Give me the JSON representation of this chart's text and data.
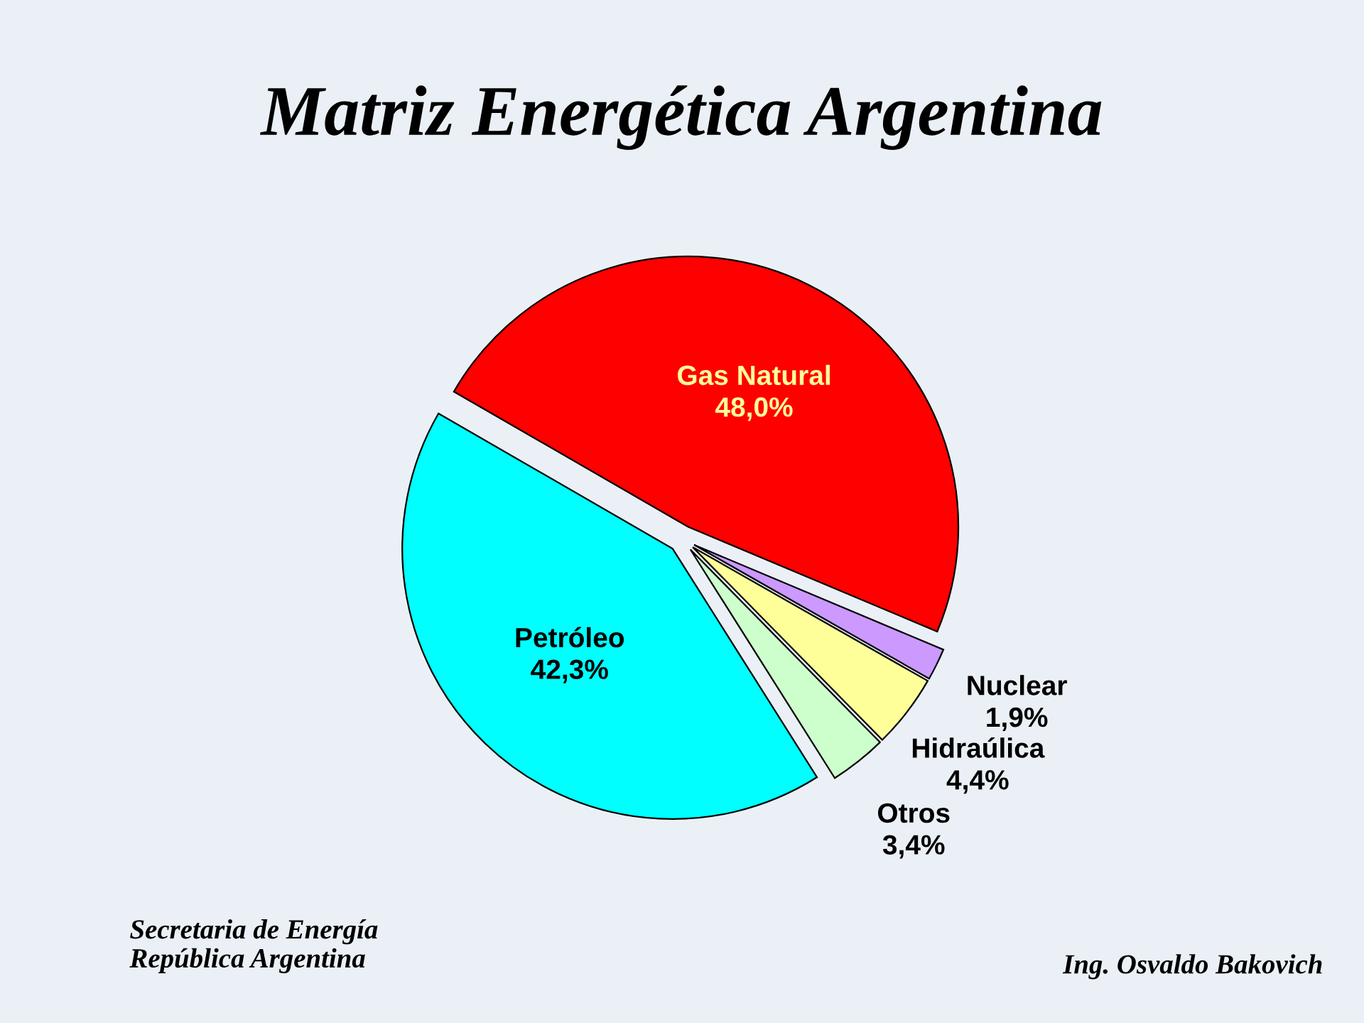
{
  "chart_data": {
    "type": "pie",
    "title": "Matriz Energética Argentina",
    "categories": [
      "Gas Natural",
      "Nuclear",
      "Hidraúlica",
      "Otros",
      "Petróleo"
    ],
    "values": [
      48.0,
      1.9,
      4.4,
      3.4,
      42.3
    ],
    "colors": [
      "#ff0000",
      "#cc99ff",
      "#ffff99",
      "#ccffcc",
      "#00ffff"
    ],
    "value_labels": [
      "48,0%",
      "1,9%",
      "4,4%",
      "3,4%",
      "42,3%"
    ],
    "annotations": [
      "Secretaria de Energía\nRepública Argentina",
      "Ing. Osvaldo Bakovich"
    ]
  }
}
